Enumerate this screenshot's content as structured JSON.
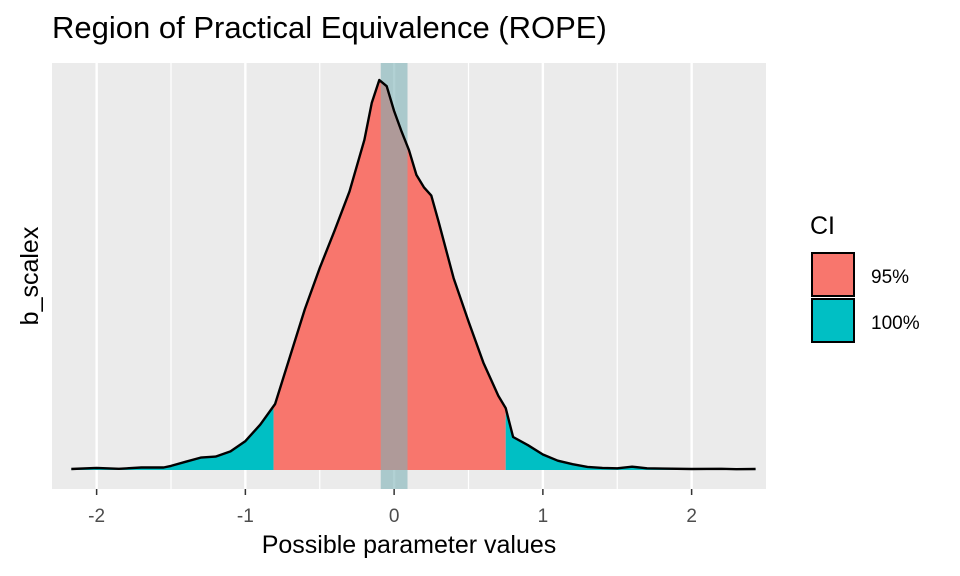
{
  "chart_data": {
    "type": "area",
    "title": "Region of Practical Equivalence (ROPE)",
    "xlabel": "Possible parameter values",
    "ylabel": "b_scalex",
    "xlim": [
      -2.3,
      2.5
    ],
    "x_ticks": [
      -2,
      -1,
      0,
      1,
      2
    ],
    "x_tick_labels": [
      "-2",
      "-1",
      "0",
      "1",
      "2"
    ],
    "grid": true,
    "legend": {
      "title": "CI",
      "position": "right",
      "entries": [
        {
          "label": "95%",
          "color": "#F8766D"
        },
        {
          "label": "100%",
          "color": "#00BFC4"
        }
      ]
    },
    "rope": {
      "low": -0.09,
      "high": 0.09,
      "color": "#7FB3B7"
    },
    "ci95": {
      "low": -0.81,
      "high": 0.75
    },
    "density": {
      "x": [
        -2.17,
        -2.0,
        -1.85,
        -1.7,
        -1.55,
        -1.5,
        -1.4,
        -1.3,
        -1.2,
        -1.1,
        -1.0,
        -0.9,
        -0.8,
        -0.7,
        -0.6,
        -0.5,
        -0.4,
        -0.3,
        -0.2,
        -0.15,
        -0.1,
        -0.05,
        0.0,
        0.05,
        0.1,
        0.15,
        0.2,
        0.25,
        0.3,
        0.4,
        0.5,
        0.6,
        0.7,
        0.75,
        0.8,
        0.9,
        1.0,
        1.1,
        1.2,
        1.3,
        1.4,
        1.5,
        1.6,
        1.7,
        1.8,
        2.0,
        2.2,
        2.3,
        2.43
      ],
      "y": [
        0.005,
        0.01,
        0.006,
        0.012,
        0.012,
        0.02,
        0.04,
        0.06,
        0.065,
        0.09,
        0.14,
        0.22,
        0.32,
        0.55,
        0.78,
        0.98,
        1.16,
        1.35,
        1.6,
        1.78,
        1.89,
        1.86,
        1.74,
        1.64,
        1.55,
        1.43,
        1.37,
        1.33,
        1.2,
        0.93,
        0.72,
        0.52,
        0.36,
        0.3,
        0.16,
        0.12,
        0.075,
        0.045,
        0.028,
        0.015,
        0.01,
        0.008,
        0.016,
        0.008,
        0.007,
        0.005,
        0.006,
        0.004,
        0.005
      ]
    }
  }
}
